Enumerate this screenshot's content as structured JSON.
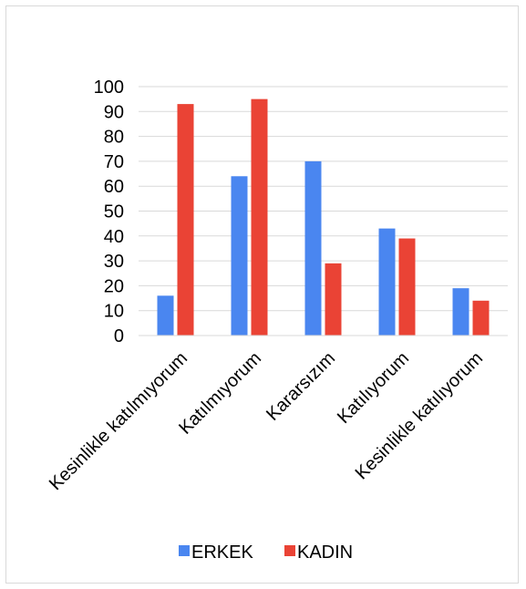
{
  "chart_data": {
    "type": "bar",
    "categories": [
      "Kesinlikle katılmıyorum",
      "Katılmıyorum",
      "Kararsızım",
      "Katılıyorum",
      "Kesinlikle katılıyorum"
    ],
    "series": [
      {
        "name": "ERKEK",
        "color": "#4a86f0",
        "values": [
          16,
          64,
          70,
          43,
          19
        ]
      },
      {
        "name": "KADIN",
        "color": "#ea4335",
        "values": [
          93,
          95,
          29,
          39,
          14
        ]
      }
    ],
    "yticks": [
      0,
      10,
      20,
      30,
      40,
      50,
      60,
      70,
      80,
      90,
      100
    ],
    "ylim": [
      0,
      100
    ],
    "grid": true,
    "legend_position": "bottom"
  }
}
